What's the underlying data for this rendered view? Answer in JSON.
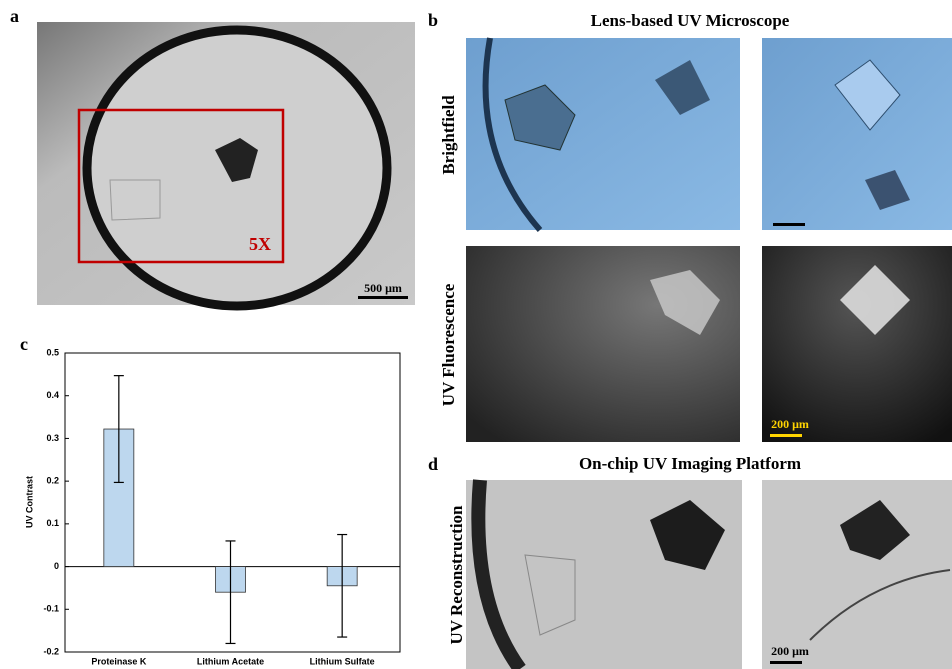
{
  "panel_a": {
    "label": "a",
    "zoom_label": "5X",
    "scale_bar": "500 μm"
  },
  "panel_b": {
    "label": "b",
    "title": "Lens-based UV Microscope",
    "rows": [
      "Brightfield",
      "UV Fluorescence"
    ],
    "scale_bar": "200 μm"
  },
  "panel_d": {
    "label": "d",
    "title": "On-chip UV Imaging Platform",
    "rows": [
      "UV Reconstruction"
    ],
    "scale_bar": "200 μm"
  },
  "panel_c": {
    "label": "c"
  },
  "chart_data": {
    "type": "bar",
    "ylabel": "UV Contrast",
    "categories": [
      "Proteinase K",
      "Lithium Acetate",
      "Lithium Sulfate"
    ],
    "values": [
      0.322,
      -0.06,
      -0.045
    ],
    "errors": [
      0.125,
      0.12,
      0.12
    ],
    "color": "#bdd7ee",
    "ylim": [
      -0.2,
      0.5
    ],
    "yticks": [
      -0.2,
      -0.1,
      0,
      0.1,
      0.2,
      0.3,
      0.4,
      0.5
    ]
  }
}
